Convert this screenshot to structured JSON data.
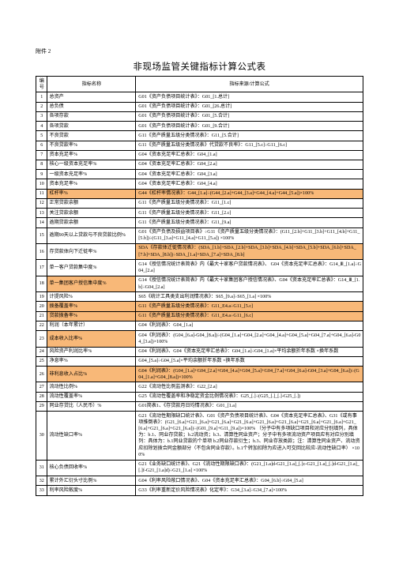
{
  "attachment_label": "附件 2",
  "title": "非现场监管关键指标计算公式表",
  "header": {
    "c1": "编号",
    "c2": "指标名称",
    "c3": "指标来源/计算公式"
  },
  "highlight_color": "#f8b878",
  "text_color": "#000000",
  "bg_color": "#ffffff",
  "rows": [
    {
      "n": "1",
      "name": "总资产",
      "formula": "G01《资产负债项目统计表》：G01_[1.总计]",
      "hl": []
    },
    {
      "n": "2",
      "name": "总负债",
      "formula": "G01《资产负债项目统计表》：G01_[26.总计]",
      "hl": []
    },
    {
      "n": "3",
      "name": "各项存款",
      "formula": "G01《资产负债项目统计表》：G01_[5.合计]",
      "hl": []
    },
    {
      "n": "4",
      "name": "各项贷款",
      "formula": "G01《资产负债项目统计表》：G01_[9.合计]",
      "hl": []
    },
    {
      "n": "5",
      "name": "不良贷款",
      "formula": "G11《资产质量五级分类情况表》：G11_[5.合计]",
      "hl": []
    },
    {
      "n": "6",
      "name": "不良贷款率%",
      "formula": "G11《资产质量五级分类情况表》代贷款不良率》：G11_[5.c]÷G11_[6.c]",
      "hl": []
    },
    {
      "n": "7",
      "name": "资本充足率%",
      "formula": "G04《资本充足率汇总表》：G04_[1.a]",
      "hl": []
    },
    {
      "n": "8",
      "name": "核心一级资本充足率%",
      "formula": "G04《资本充足率汇总表》：G04_[2.a]",
      "hl": []
    },
    {
      "n": "9",
      "name": "一级资本充足率%",
      "formula": "G04《资本充足率汇总表》：G04_[3.a]",
      "hl": []
    },
    {
      "n": "10",
      "name": "资本充足率%",
      "formula": "G04《资本充足率汇总表》：G04_[4.a]",
      "hl": []
    },
    {
      "n": "11",
      "name": "杠杆率%",
      "formula": "G44《杠杆率情况表》：G44_[1.a]÷(G44_[2.a]+G44_[3.a]+G44_[4.a]+G44_[5.a])×100%",
      "hl": [
        "name",
        "formula"
      ]
    },
    {
      "n": "12",
      "name": "正常贷款余额",
      "formula": "G11《资产质量五级分类情况表》：G11_[1.c]",
      "hl": []
    },
    {
      "n": "13",
      "name": "关注贷款余额",
      "formula": "G11《资产质量五级分类情况表》：G11_[2.c]",
      "hl": []
    },
    {
      "n": "14",
      "name": "逾期贷款余额",
      "formula": "G11《资产质量五级分类情况表》：G11_[9.a]",
      "hl": []
    },
    {
      "n": "15",
      "name": "逾期90天以上贷款与不良贷款比例%",
      "formula": "G01《资产负债及损益项目表》÷G11《资产质量五级分类情况表》：(G11_[2.b]+G11_[3.b]+G11_[4.b]+G11_[5.b])÷(G11_[3.a]+G11_[4.a]+G11_[5.a])    ×100%",
      "hl": []
    },
    {
      "n": "16",
      "name": "存贷款体向下迁徙率%",
      "formula": "SDA《存款体迁徙情况表》：(SDA_[1.b]+SDA_[2.b]+SDA_[3.b]+SDA_[4.b]+SDA_[5.b]+SDA_[6.b]+SDA_[7.b]+SDA_[8.b])÷SDA_[1.a]+SDA_[7.a]+SDA_[8.b]",
      "hl": [
        "formula"
      ]
    },
    {
      "n": "17",
      "name": "单一客户贷款集中度%",
      "formula": "G14《授信情况统计表简表》内《最大十家客户贷款情况表》、   G04《资本充足率汇总表》：G14_Ⅲ_[1.a]÷G04_[2.a]",
      "hl": []
    },
    {
      "n": "18",
      "name": "单一集团客户授信集中度%",
      "formula": "G14《授信情况统计表简表》内《最大十家集团客户授信情况表》、G04《资本充足率汇总表》：G14_Ⅲ_[1.b]÷G04_[2.a]",
      "hl": [
        "name"
      ]
    },
    {
      "n": "19",
      "name": "计提风险%",
      "formula": "S65《统计工具类支出利润情况表》：S65_[9.a]÷S65_[1.a]    ×100%",
      "hl": []
    },
    {
      "n": "20",
      "name": "拨备覆盖率%",
      "formula": "G11《资产质量五级分类情况表》：G11_E4.a÷G11_[5.c]",
      "hl": [
        "name",
        "formula"
      ]
    },
    {
      "n": "21",
      "name": "贷款拨备率%",
      "formula": "G11《资产质量五级分类情况表》：G11_E4.a÷G11_[6.c]",
      "hl": [
        "name",
        "formula"
      ]
    },
    {
      "n": "22",
      "name": "利润（本年累计）",
      "formula": "G04《利润表》：G04_[1.a]",
      "hl": []
    },
    {
      "n": "23",
      "name": "成本收入比率%",
      "formula": "G04《利润表》：(G04_[6.a]-G04_[8.a])÷(G04_[1.a]+G04_[2.a]+G04_[4.a]+G04_[5.a]+G04_[7.a]+G04_[6.a]-G04_[3.a])×100%",
      "hl": [
        "name"
      ]
    },
    {
      "n": "24",
      "name": "风险资产利润比率%",
      "formula": "G04《利润表》、G04《资本充足率汇总表》：G04_[1.a]÷G04_[1.a]×平均余额折年系数 ×换年系数",
      "hl": []
    },
    {
      "n": "25",
      "name": "净息率%",
      "formula": "G04_[5.a]÷G04_[5.a]×平均余额折年系数 ×换年系数",
      "hl": []
    },
    {
      "n": "26",
      "name": "非利息收入占比%",
      "formula": "G04《利润表》：(G04_[1.a]+G04_[2.a]+G04_[4.a]+G04_[5.a]+G04_[7.a]+G04_[6.a]-G04_[3.a]+G04_[6.a])÷(G04_[1.a]+G04_[8.a])×100%",
      "hl": [
        "name",
        "formula"
      ]
    },
    {
      "n": "27",
      "name": "流动性比例%",
      "formula": "G22《流动性比例监测表》：G22_[2.a]",
      "hl": []
    },
    {
      "n": "28",
      "name": "流动性覆盖率%",
      "formula": "G25《流动性覆盖率和净稳定资金比例情况表》：G25_[.]÷(G25_[.]_[.]-G25_[.])",
      "hl": []
    },
    {
      "n": "29",
      "name": "同业存贷比（人民币）%",
      "formula": "G01简表1、《存贷款月日均情况表》：G01_[1.a]",
      "hl": []
    },
    {
      "n": "30",
      "name": "流动性缺口率%",
      "formula": "G21《流动性期限缺口统计表》、G01《资产负债项目统计表》、G04《资本充足率汇总表》、G31《或有事项推倒表》：(G21_[6.a]+G21_[6.a]+G21_[6.a]+G21_[6.a]+G21_[6.a]+G21_[6.a]+G21_[6.a]+G21_[6.a]+G21_[6.a]+G21_[6.a]+G21_[6.a])÷(G01_[9.a]+G11_[9.a])×100%\n（分子中有多项缺口项目和对应分别填列，具体为：b.1、同业存贷款；b.2流动资；b.3、清算性同业资产；分子中有多项流动资产项目应有对应分别填列：具体为：b.1同业贷款的个单项 b.2同业存款衍生；b.3、同业存放类款；注：清算性同业资产、流动资应扣除划拨合同金额部分（不包含同业存款）。b.1个转加扣除为应进入可交回比较应-流动性缺口率）\n×100%",
      "hl": []
    },
    {
      "n": "31",
      "name": "核心负债回收率%",
      "formula": "G21《业务缺口统计表》、G21《流动性期限缺口表》：(G21_[1.a]d-G21_[1.a]_[.]c-G21_[1.a]_[.]d-G21_[1.a]_[.]f-G21_[1.a]d)÷G21_[1.a]    ×100%",
      "hl": []
    },
    {
      "n": "32",
      "name": "累计外汇衍头寸比例%",
      "formula": "G04《利率风险敞口情况表》、G04《资本充足率汇总表》：G04_[6.b]÷G04_[5.a]",
      "hl": []
    },
    {
      "n": "33",
      "name": "利率风险敞度%",
      "formula": "G33《利率重新定价风险情况表》化定率》：G34_[3.a]÷G34_[7.a]×100%",
      "hl": []
    }
  ]
}
